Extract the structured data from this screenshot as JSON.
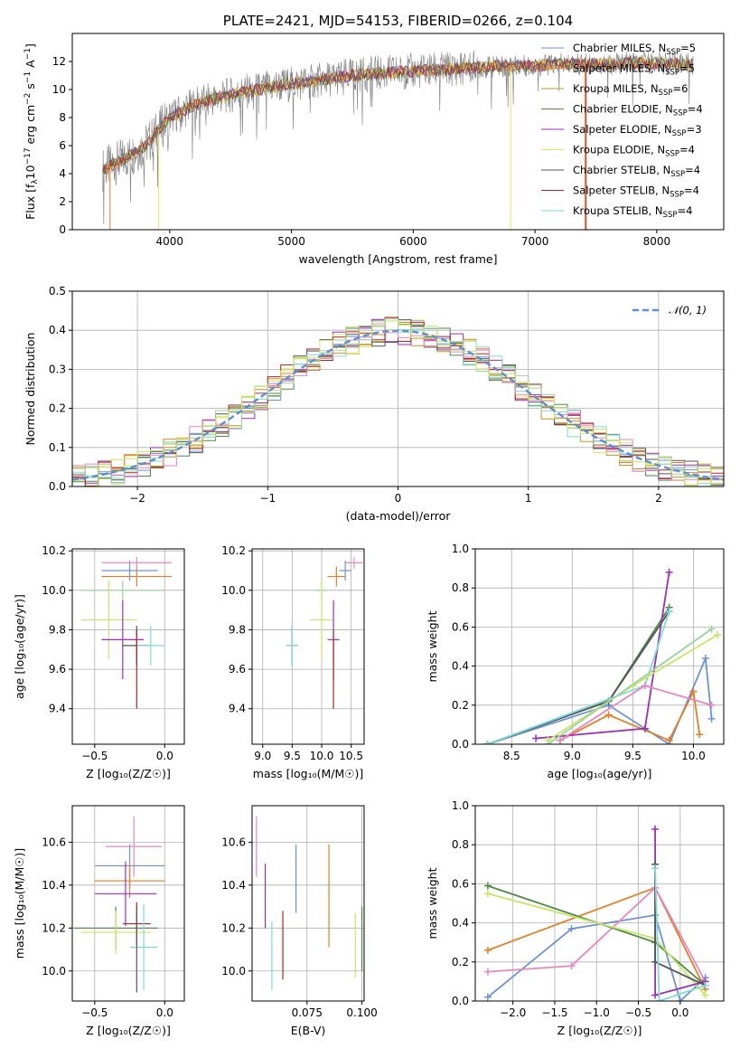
{
  "colors": [
    "#6b93d6",
    "#e67e22",
    "#c8941e",
    "#4e8a48",
    "#9b30b8",
    "#dfe85c",
    "#555555",
    "#b22222",
    "#7fdada",
    "#e887c0",
    "#9bd49a",
    "#c8e664"
  ],
  "chart_data": [
    {
      "id": "spectrum",
      "type": "line",
      "title": "PLATE=2421, MJD=54153, FIBERID=0266, z=0.104",
      "xlabel": "wavelength [Angstrom, rest frame]",
      "ylabel_main": "Flux [f",
      "ylabel_sub": "λ",
      "ylabel_rest": "10",
      "ylabel_exp1": "−17",
      "ylabel_mid": " erg cm",
      "ylabel_exp2": "−2",
      "ylabel_s": " s",
      "ylabel_exp3": "−1",
      "ylabel_A": " A",
      "ylabel_exp4": "−1",
      "ylabel_end": "]",
      "xlim": [
        3200,
        8550
      ],
      "ylim": [
        0,
        14
      ],
      "xticks": [
        4000,
        5000,
        6000,
        7000,
        8000
      ],
      "yticks": [
        0,
        2,
        4,
        6,
        8,
        10,
        12
      ],
      "continuum": {
        "x": [
          3450,
          3600,
          3800,
          4000,
          4200,
          4400,
          4600,
          4800,
          5000,
          5200,
          5400,
          5600,
          5800,
          6000,
          6200,
          6400,
          6600,
          6800,
          7000,
          7200,
          7400,
          7600,
          7800,
          8000,
          8300
        ],
        "y": [
          4.3,
          4.9,
          6.0,
          8.0,
          8.9,
          9.4,
          9.8,
          10.1,
          10.4,
          10.6,
          10.9,
          11.1,
          11.2,
          11.3,
          11.4,
          11.5,
          11.6,
          11.7,
          11.7,
          11.8,
          11.8,
          11.8,
          11.9,
          11.9,
          11.8
        ]
      },
      "legend": [
        {
          "label": "Chabrier MILES, N",
          "sub": "SSP",
          "val": "=5"
        },
        {
          "label": "Salpeter MILES, N",
          "sub": "SSP",
          "val": "=5"
        },
        {
          "label": "Kroupa MILES, N",
          "sub": "SSP",
          "val": "=6"
        },
        {
          "label": "Chabrier ELODIE, N",
          "sub": "SSP",
          "val": "=4"
        },
        {
          "label": "Salpeter ELODIE, N",
          "sub": "SSP",
          "val": "=3"
        },
        {
          "label": "Kroupa ELODIE, N",
          "sub": "SSP",
          "val": "=4"
        },
        {
          "label": "Chabrier STELIB, N",
          "sub": "SSP",
          "val": "=4"
        },
        {
          "label": "Salpeter STELIB, N",
          "sub": "SSP",
          "val": "=4"
        },
        {
          "label": "Kroupa STELIB, N",
          "sub": "SSP",
          "val": "=4"
        }
      ]
    },
    {
      "id": "residuals",
      "type": "line",
      "xlabel": "(data-model)/error",
      "ylabel": "Normed distribution",
      "xlim": [
        -2.5,
        2.5
      ],
      "ylim": [
        0,
        0.5
      ],
      "xticks": [
        -2,
        -1,
        0,
        1,
        2
      ],
      "xtick_labels": [
        "−2",
        "−1",
        "0",
        "1",
        "2"
      ],
      "yticks": [
        0,
        0.1,
        0.2,
        0.3,
        0.4,
        0.5
      ],
      "ytick_labels": [
        "0.0",
        "0.1",
        "0.2",
        "0.3",
        "0.4",
        "0.5"
      ],
      "legend_label": "𝒩(0, 1)",
      "bin_width": 0.1
    },
    {
      "id": "age-vs-Z",
      "type": "scatter",
      "xlabel": "Z [log₁₀(Z/Z☉)]",
      "ylabel": "age  [log₁₀(age/yr)]",
      "xlim": [
        -0.66,
        0.14
      ],
      "ylim": [
        9.22,
        10.21
      ],
      "xticks": [
        -0.5,
        0
      ],
      "xtick_labels": [
        "−0.5",
        "0.0"
      ],
      "yticks": [
        9.4,
        9.6,
        9.8,
        10.0,
        10.2
      ],
      "ytick_labels": [
        "9.4",
        "9.6",
        "9.8",
        "10.0",
        "10.2"
      ],
      "points": [
        {
          "x": -0.25,
          "xerr": 0.2,
          "y": 10.1,
          "yerr": 0.05,
          "c": 0
        },
        {
          "x": -0.2,
          "xerr": 0.25,
          "y": 10.07,
          "yerr": 0.05,
          "c": 1
        },
        {
          "x": -0.3,
          "xerr": 0.3,
          "y": 10.0,
          "yerr": 0.05,
          "c": 10
        },
        {
          "x": -0.4,
          "xerr": 0.2,
          "y": 9.85,
          "yerr": 0.2,
          "c": 11
        },
        {
          "x": -0.3,
          "xerr": 0.15,
          "y": 9.75,
          "yerr": 0.2,
          "c": 4
        },
        {
          "x": -0.2,
          "xerr": 0.1,
          "y": 9.72,
          "yerr": 0.1,
          "c": 6
        },
        {
          "x": -0.1,
          "xerr": 0.1,
          "y": 9.72,
          "yerr": 0.1,
          "c": 8
        },
        {
          "x": -0.2,
          "xerr": 0.0,
          "y": 9.6,
          "yerr": 0.2,
          "c": 7
        },
        {
          "x": -0.2,
          "xerr": 0.25,
          "y": 10.14,
          "yerr": 0.03,
          "c": 9
        }
      ]
    },
    {
      "id": "age-vs-mass",
      "type": "scatter",
      "xlabel": "mass [log₁₀(M/M☉)]",
      "xlim": [
        8.82,
        10.72
      ],
      "ylim": [
        9.22,
        10.21
      ],
      "xticks": [
        9.0,
        9.5,
        10.0,
        10.5
      ],
      "xtick_labels": [
        "9.0",
        "9.5",
        "10.0",
        "10.5"
      ],
      "yticks": [
        9.4,
        9.6,
        9.8,
        10.0,
        10.2
      ],
      "ytick_labels": [
        "9.4",
        "9.6",
        "9.8",
        "10.0",
        "10.2"
      ],
      "points": [
        {
          "x": 10.4,
          "xerr": 0.1,
          "y": 10.1,
          "yerr": 0.05,
          "c": 0
        },
        {
          "x": 10.25,
          "xerr": 0.15,
          "y": 10.07,
          "yerr": 0.05,
          "c": 1
        },
        {
          "x": 10.0,
          "xerr": 0.1,
          "y": 10.0,
          "yerr": 0.05,
          "c": 10
        },
        {
          "x": 10.0,
          "xerr": 0.2,
          "y": 9.85,
          "yerr": 0.2,
          "c": 11
        },
        {
          "x": 10.2,
          "xerr": 0.1,
          "y": 9.75,
          "yerr": 0.2,
          "c": 4
        },
        {
          "x": 9.5,
          "xerr": 0.1,
          "y": 9.72,
          "yerr": 0.1,
          "c": 6
        },
        {
          "x": 9.5,
          "xerr": 0.1,
          "y": 9.72,
          "yerr": 0.1,
          "c": 8
        },
        {
          "x": 10.2,
          "xerr": 0.0,
          "y": 9.6,
          "yerr": 0.2,
          "c": 7
        },
        {
          "x": 10.55,
          "xerr": 0.15,
          "y": 10.14,
          "yerr": 0.03,
          "c": 9
        }
      ]
    },
    {
      "id": "mass-weight-vs-age",
      "type": "line",
      "xlabel": "age  [log₁₀(age/yr)]",
      "ylabel": "mass weight",
      "xlim": [
        8.2,
        10.25
      ],
      "ylim": [
        0,
        1
      ],
      "xticks": [
        8.5,
        9.0,
        9.5,
        10.0
      ],
      "xtick_labels": [
        "8.5",
        "9.0",
        "9.5",
        "10.0"
      ],
      "yticks": [
        0,
        0.2,
        0.4,
        0.6,
        0.8,
        1.0
      ],
      "ytick_labels": [
        "0.0",
        "0.2",
        "0.4",
        "0.6",
        "0.8",
        "1.0"
      ],
      "series": [
        {
          "c": 0,
          "x": [
            8.3,
            9.3,
            9.8,
            10.1,
            10.15
          ],
          "y": [
            0.0,
            0.2,
            0.0,
            0.44,
            0.13
          ]
        },
        {
          "c": 1,
          "x": [
            8.9,
            9.3,
            9.8,
            10.0,
            10.05
          ],
          "y": [
            0.02,
            0.15,
            0.02,
            0.27,
            0.05
          ]
        },
        {
          "c": 3,
          "x": [
            8.3,
            9.3,
            9.8
          ],
          "y": [
            0.0,
            0.22,
            0.7
          ]
        },
        {
          "c": 4,
          "x": [
            8.7,
            9.6,
            9.8
          ],
          "y": [
            0.03,
            0.08,
            0.88
          ]
        },
        {
          "c": 6,
          "x": [
            8.3,
            9.3,
            9.8
          ],
          "y": [
            0.0,
            0.22,
            0.68
          ]
        },
        {
          "c": 8,
          "x": [
            8.3,
            9.6,
            9.8
          ],
          "y": [
            0.0,
            0.3,
            0.68
          ]
        },
        {
          "c": 11,
          "x": [
            8.8,
            9.5,
            10.2
          ],
          "y": [
            0.02,
            0.3,
            0.56
          ]
        },
        {
          "c": 9,
          "x": [
            8.9,
            9.6,
            10.15
          ],
          "y": [
            0.02,
            0.3,
            0.2
          ]
        },
        {
          "c": 10,
          "x": [
            8.8,
            10.15
          ],
          "y": [
            0.0,
            0.59
          ]
        }
      ]
    },
    {
      "id": "mass-vs-Z",
      "type": "scatter",
      "xlabel": "Z [log₁₀(Z/Z☉)]",
      "ylabel": "mass [log₁₀(M/M☉)]",
      "xlim": [
        -0.66,
        0.14
      ],
      "ylim": [
        9.86,
        10.77
      ],
      "xticks": [
        -0.5,
        0
      ],
      "xtick_labels": [
        "−0.5",
        "0.0"
      ],
      "yticks": [
        10.0,
        10.2,
        10.4,
        10.6
      ],
      "ytick_labels": [
        "10.0",
        "10.2",
        "10.4",
        "10.6"
      ],
      "points": [
        {
          "x": -0.22,
          "xerr": 0.2,
          "y": 10.58,
          "yerr": 0.14,
          "c": 9
        },
        {
          "x": -0.25,
          "xerr": 0.25,
          "y": 10.49,
          "yerr": 0.1,
          "c": 0
        },
        {
          "x": -0.25,
          "xerr": 0.25,
          "y": 10.42,
          "yerr": 0.08,
          "c": 1
        },
        {
          "x": -0.28,
          "xerr": 0.22,
          "y": 10.36,
          "yerr": 0.15,
          "c": 4
        },
        {
          "x": -0.2,
          "xerr": 0.1,
          "y": 10.22,
          "yerr": 0.1,
          "c": 7
        },
        {
          "x": -0.35,
          "xerr": 0.3,
          "y": 10.2,
          "yerr": 0.1,
          "c": 3
        },
        {
          "x": -0.35,
          "xerr": 0.25,
          "y": 10.18,
          "yerr": 0.1,
          "c": 11
        },
        {
          "x": -0.15,
          "xerr": 0.1,
          "y": 10.11,
          "yerr": 0.2,
          "c": 8
        },
        {
          "x": -0.2,
          "xerr": 0.0,
          "y": 10.1,
          "yerr": 0.2,
          "c": 6
        }
      ]
    },
    {
      "id": "mass-vs-EBV",
      "type": "scatter",
      "xlabel": "E(B-V)",
      "xlim": [
        0.05,
        0.101
      ],
      "ylim": [
        9.86,
        10.77
      ],
      "xticks": [
        0.075,
        0.1
      ],
      "xtick_labels": [
        "0.075",
        "0.100"
      ],
      "yticks": [
        10.0,
        10.2,
        10.4,
        10.6
      ],
      "ytick_labels": [
        "10.0",
        "10.2",
        "10.4",
        "10.6"
      ],
      "points": [
        {
          "x": 0.052,
          "y": 10.58,
          "yerr": 0.14,
          "c": 9
        },
        {
          "x": 0.056,
          "y": 10.35,
          "yerr": 0.15,
          "c": 4
        },
        {
          "x": 0.059,
          "y": 10.07,
          "yerr": 0.16,
          "c": 8
        },
        {
          "x": 0.064,
          "y": 10.12,
          "yerr": 0.16,
          "c": 7
        },
        {
          "x": 0.07,
          "y": 10.43,
          "yerr": 0.16,
          "c": 0
        },
        {
          "x": 0.085,
          "y": 10.35,
          "yerr": 0.24,
          "c": 1
        },
        {
          "x": 0.097,
          "y": 10.12,
          "yerr": 0.15,
          "c": 11
        },
        {
          "x": 0.1,
          "y": 10.15,
          "yerr": 0.15,
          "c": 3
        }
      ]
    },
    {
      "id": "mass-weight-vs-Z",
      "type": "line",
      "xlabel": "Z [log₁₀(Z/Z☉)]",
      "ylabel": "mass weight",
      "xlim": [
        -2.45,
        0.52
      ],
      "ylim": [
        0,
        1
      ],
      "xticks": [
        -2.0,
        -1.5,
        -1.0,
        -0.5,
        0.0
      ],
      "xtick_labels": [
        "−2.0",
        "−1.5",
        "−1.0",
        "−0.5",
        "0.0"
      ],
      "yticks": [
        0,
        0.2,
        0.4,
        0.6,
        0.8,
        1.0
      ],
      "ytick_labels": [
        "0.0",
        "0.2",
        "0.4",
        "0.6",
        "0.8",
        "1.0"
      ],
      "series": [
        {
          "c": 0,
          "x": [
            -2.3,
            -1.3,
            -0.3,
            0.0,
            0.3
          ],
          "y": [
            0.02,
            0.37,
            0.44,
            0.0,
            0.12
          ]
        },
        {
          "c": 1,
          "x": [
            -2.3,
            -0.3,
            0.3
          ],
          "y": [
            0.26,
            0.58,
            0.06
          ]
        },
        {
          "c": 9,
          "x": [
            -2.3,
            -1.3,
            -0.3,
            0.3
          ],
          "y": [
            0.15,
            0.18,
            0.58,
            0.1
          ]
        },
        {
          "c": 3,
          "x": [
            -2.3,
            -0.3,
            0.3
          ],
          "y": [
            0.59,
            0.3,
            0.08
          ]
        },
        {
          "c": 11,
          "x": [
            -2.3,
            -0.3,
            0.3
          ],
          "y": [
            0.55,
            0.32,
            0.03
          ]
        },
        {
          "c": 4,
          "x": [
            -0.3,
            -0.3,
            0.3
          ],
          "y": [
            0.88,
            0.03,
            0.1
          ]
        },
        {
          "c": 6,
          "x": [
            -0.3,
            -0.3,
            0.3
          ],
          "y": [
            0.7,
            0.2,
            0.08
          ]
        },
        {
          "c": 8,
          "x": [
            -0.3,
            -0.25,
            0.3
          ],
          "y": [
            0.68,
            0.0,
            0.08
          ]
        }
      ]
    }
  ]
}
